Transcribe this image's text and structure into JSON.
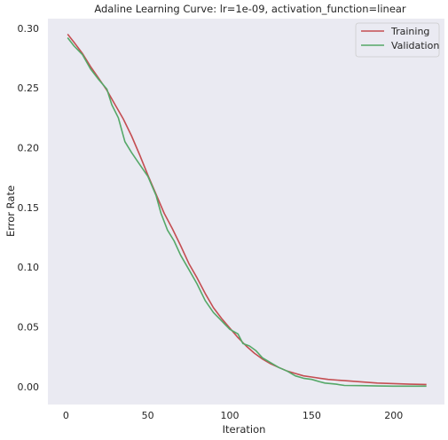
{
  "chart_data": {
    "type": "line",
    "title": "Adaline Learning Curve: lr=1e-09, activation_function=linear",
    "xlabel": "Iteration",
    "ylabel": "Error Rate",
    "xlim": [
      -11,
      231
    ],
    "ylim": [
      -0.015,
      0.308
    ],
    "xticks": [
      0,
      50,
      100,
      150,
      200
    ],
    "yticks": [
      0.0,
      0.05,
      0.1,
      0.15,
      0.2,
      0.25,
      0.3
    ],
    "grid": false,
    "legend": "top-right",
    "background": "#eaeaf2",
    "series": [
      {
        "name": "Training",
        "color": "#c44e52",
        "x": [
          1,
          5,
          10,
          15,
          20,
          25,
          30,
          35,
          40,
          45,
          50,
          55,
          60,
          65,
          70,
          75,
          80,
          85,
          90,
          95,
          100,
          105,
          110,
          115,
          120,
          125,
          130,
          135,
          140,
          145,
          150,
          155,
          160,
          170,
          180,
          190,
          200,
          210,
          220
        ],
        "values": [
          0.295,
          0.288,
          0.279,
          0.268,
          0.258,
          0.248,
          0.236,
          0.224,
          0.21,
          0.194,
          0.177,
          0.161,
          0.145,
          0.132,
          0.118,
          0.103,
          0.091,
          0.078,
          0.066,
          0.057,
          0.049,
          0.041,
          0.034,
          0.028,
          0.023,
          0.019,
          0.016,
          0.013,
          0.011,
          0.009,
          0.008,
          0.007,
          0.006,
          0.005,
          0.004,
          0.003,
          0.0025,
          0.002,
          0.0018
        ]
      },
      {
        "name": "Validation",
        "color": "#55a868",
        "x": [
          1,
          5,
          10,
          15,
          20,
          25,
          28,
          32,
          36,
          40,
          45,
          50,
          55,
          58,
          62,
          66,
          70,
          75,
          80,
          85,
          90,
          95,
          100,
          105,
          108,
          112,
          116,
          120,
          125,
          130,
          135,
          140,
          145,
          150,
          155,
          158,
          165,
          170,
          180,
          190,
          200,
          210,
          220
        ],
        "values": [
          0.292,
          0.285,
          0.278,
          0.266,
          0.257,
          0.249,
          0.236,
          0.225,
          0.205,
          0.196,
          0.186,
          0.176,
          0.16,
          0.145,
          0.131,
          0.122,
          0.11,
          0.098,
          0.086,
          0.072,
          0.062,
          0.055,
          0.048,
          0.044,
          0.036,
          0.034,
          0.03,
          0.024,
          0.02,
          0.016,
          0.013,
          0.009,
          0.007,
          0.006,
          0.004,
          0.003,
          0.002,
          0.001,
          0.0008,
          0.0005,
          0.0004,
          0.0004,
          0.0004
        ]
      }
    ]
  }
}
